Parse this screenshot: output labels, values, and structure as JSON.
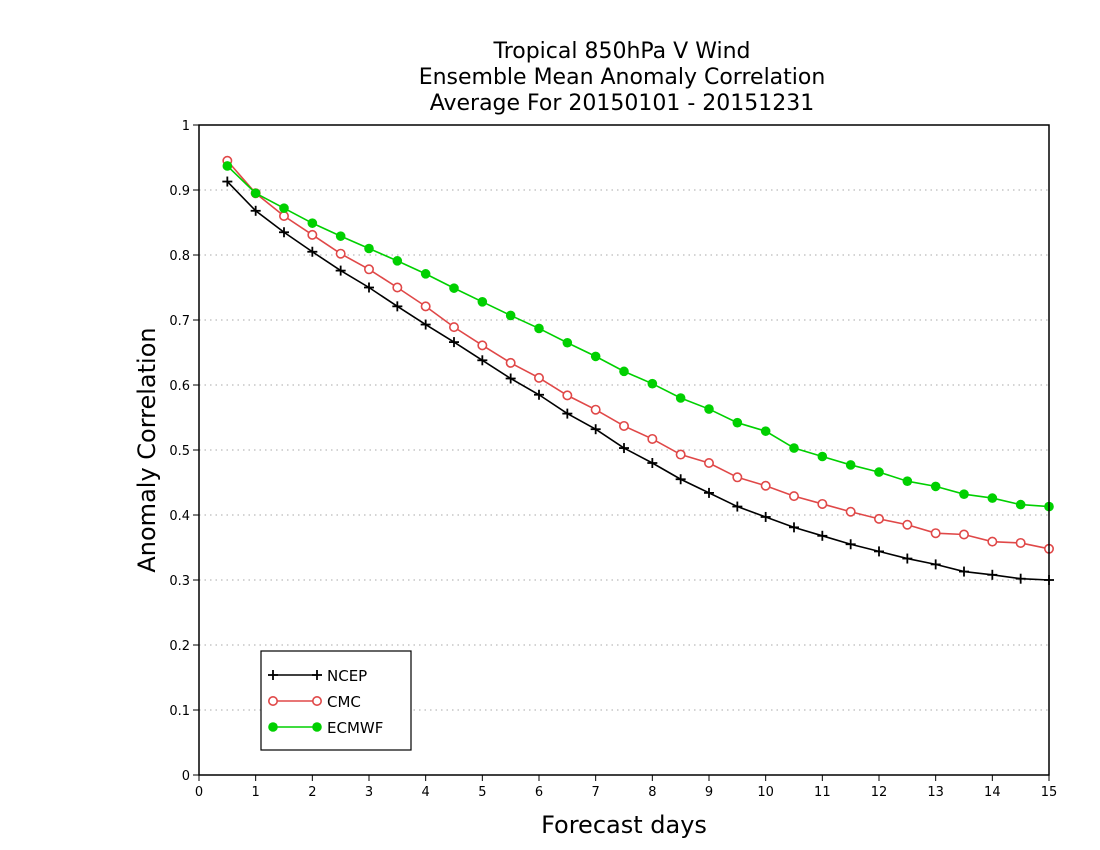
{
  "chart_data": {
    "type": "line",
    "title_lines": [
      "Tropical 850hPa V Wind",
      "Ensemble Mean Anomaly Correlation",
      "Average For 20150101 - 20151231"
    ],
    "xlabel": "Forecast days",
    "ylabel": "Anomaly Correlation",
    "xlim": [
      0,
      15
    ],
    "ylim": [
      0,
      1
    ],
    "xticks": [
      "0",
      "1",
      "2",
      "3",
      "4",
      "5",
      "6",
      "7",
      "8",
      "9",
      "10",
      "11",
      "12",
      "13",
      "14",
      "15"
    ],
    "yticks": [
      "0",
      "0.1",
      "0.2",
      "0.3",
      "0.4",
      "0.5",
      "0.6",
      "0.7",
      "0.8",
      "0.9",
      "1"
    ],
    "grid": "horizontal dotted",
    "legend_position": "bottom-left",
    "x": [
      0.5,
      1,
      1.5,
      2,
      2.5,
      3,
      3.5,
      4,
      4.5,
      5,
      5.5,
      6,
      6.5,
      7,
      7.5,
      8,
      8.5,
      9,
      9.5,
      10,
      10.5,
      11,
      11.5,
      12,
      12.5,
      13,
      13.5,
      14,
      14.5,
      15
    ],
    "series": [
      {
        "name": "NCEP",
        "color": "#000000",
        "marker": "plus",
        "values": [
          0.913,
          0.868,
          0.835,
          0.805,
          0.776,
          0.75,
          0.721,
          0.693,
          0.666,
          0.638,
          0.61,
          0.585,
          0.556,
          0.532,
          0.503,
          0.48,
          0.455,
          0.434,
          0.413,
          0.397,
          0.381,
          0.368,
          0.355,
          0.344,
          0.333,
          0.324,
          0.313,
          0.308,
          0.302,
          0.3
        ]
      },
      {
        "name": "CMC",
        "color": "#e04848",
        "marker": "open-circle",
        "values": [
          0.945,
          0.895,
          0.86,
          0.831,
          0.802,
          0.778,
          0.75,
          0.721,
          0.689,
          0.661,
          0.634,
          0.611,
          0.584,
          0.562,
          0.537,
          0.517,
          0.493,
          0.48,
          0.458,
          0.445,
          0.429,
          0.417,
          0.405,
          0.394,
          0.385,
          0.372,
          0.37,
          0.359,
          0.357,
          0.348
        ]
      },
      {
        "name": "ECMWF",
        "color": "#00d000",
        "marker": "filled-circle",
        "values": [
          0.937,
          0.895,
          0.872,
          0.849,
          0.829,
          0.81,
          0.791,
          0.771,
          0.749,
          0.728,
          0.707,
          0.687,
          0.665,
          0.644,
          0.621,
          0.602,
          0.58,
          0.563,
          0.542,
          0.529,
          0.503,
          0.49,
          0.477,
          0.466,
          0.452,
          0.444,
          0.432,
          0.426,
          0.416,
          0.413
        ]
      }
    ]
  }
}
